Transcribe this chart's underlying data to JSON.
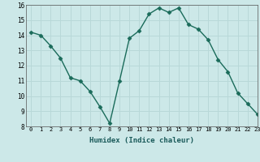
{
  "x": [
    0,
    1,
    2,
    3,
    4,
    5,
    6,
    7,
    8,
    9,
    10,
    11,
    12,
    13,
    14,
    15,
    16,
    17,
    18,
    19,
    20,
    21,
    22,
    23
  ],
  "y": [
    14.2,
    14.0,
    13.3,
    12.5,
    11.2,
    11.0,
    10.3,
    9.3,
    8.2,
    11.0,
    13.8,
    14.3,
    15.4,
    15.8,
    15.5,
    15.8,
    14.7,
    14.4,
    13.7,
    12.4,
    11.6,
    10.2,
    9.5,
    8.8
  ],
  "xlabel": "Humidex (Indice chaleur)",
  "ylim": [
    8,
    16
  ],
  "xlim": [
    -0.5,
    23
  ],
  "yticks": [
    8,
    9,
    10,
    11,
    12,
    13,
    14,
    15,
    16
  ],
  "xticks": [
    0,
    1,
    2,
    3,
    4,
    5,
    6,
    7,
    8,
    9,
    10,
    11,
    12,
    13,
    14,
    15,
    16,
    17,
    18,
    19,
    20,
    21,
    22,
    23
  ],
  "line_color": "#1a6b5a",
  "marker": "D",
  "marker_size": 2.5,
  "bg_color": "#cce8e8",
  "grid_color": "#b8d8d8",
  "axes_bg": "#cce8e8"
}
